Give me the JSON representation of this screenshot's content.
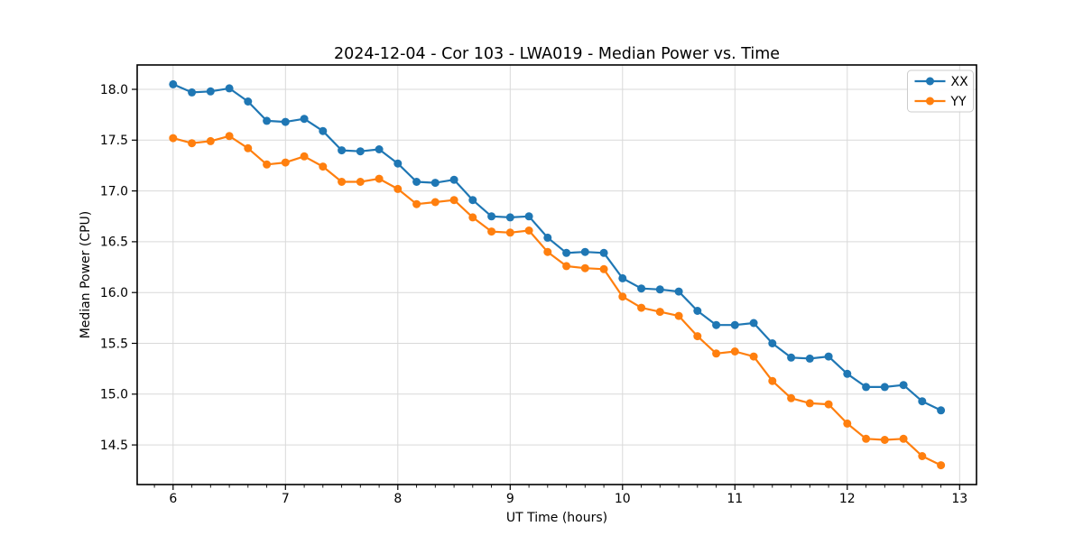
{
  "figure": {
    "title": "2024-12-04 - Cor 103 - LWA019 - Median Power vs. Time",
    "background": "#ffffff"
  },
  "chart_data": {
    "type": "line",
    "title": "2024-12-04 - Cor 103 - LWA019 - Median Power vs. Time",
    "xlabel": "UT Time (hours)",
    "ylabel": "Median Power (CPU)",
    "xlim": [
      5.68,
      13.15
    ],
    "ylim": [
      14.11,
      18.24
    ],
    "xticks": [
      6,
      7,
      8,
      9,
      10,
      11,
      12,
      13
    ],
    "yticks": [
      14.5,
      15.0,
      15.5,
      16.0,
      16.5,
      17.0,
      17.5,
      18.0
    ],
    "x_minor_tick_step": 0.166667,
    "grid": true,
    "grid_color": "#d9d9d9",
    "spine_color": "#000000",
    "legend": {
      "position": "upper right",
      "border_color": "#cccccc",
      "background": "#ffffff"
    },
    "marker": "o",
    "x": [
      6.0,
      6.1667,
      6.3333,
      6.5,
      6.6667,
      6.8333,
      7.0,
      7.1667,
      7.3333,
      7.5,
      7.6667,
      7.8333,
      8.0,
      8.1667,
      8.3333,
      8.5,
      8.6667,
      8.8333,
      9.0,
      9.1667,
      9.3333,
      9.5,
      9.6667,
      9.8333,
      10.0,
      10.1667,
      10.3333,
      10.5,
      10.6667,
      10.8333,
      11.0,
      11.1667,
      11.3333,
      11.5,
      11.6667,
      11.8333,
      12.0,
      12.1667,
      12.3333,
      12.5,
      12.6667,
      12.8333
    ],
    "series": [
      {
        "name": "XX",
        "color": "#1f77b4",
        "values": [
          18.05,
          17.97,
          17.98,
          18.01,
          17.88,
          17.69,
          17.68,
          17.71,
          17.59,
          17.4,
          17.39,
          17.41,
          17.27,
          17.09,
          17.08,
          17.11,
          16.91,
          16.75,
          16.74,
          16.75,
          16.54,
          16.39,
          16.4,
          16.39,
          16.14,
          16.04,
          16.03,
          16.01,
          15.82,
          15.68,
          15.68,
          15.7,
          15.5,
          15.36,
          15.35,
          15.37,
          15.2,
          15.07,
          15.07,
          15.09,
          14.93,
          14.84
        ]
      },
      {
        "name": "YY",
        "color": "#ff7f0e",
        "values": [
          17.52,
          17.47,
          17.49,
          17.54,
          17.42,
          17.26,
          17.28,
          17.34,
          17.24,
          17.09,
          17.09,
          17.12,
          17.02,
          16.87,
          16.89,
          16.91,
          16.74,
          16.6,
          16.59,
          16.61,
          16.4,
          16.26,
          16.24,
          16.23,
          15.96,
          15.85,
          15.81,
          15.77,
          15.57,
          15.4,
          15.42,
          15.37,
          15.13,
          14.96,
          14.91,
          14.9,
          14.71,
          14.56,
          14.55,
          14.56,
          14.39,
          14.3
        ]
      }
    ]
  }
}
